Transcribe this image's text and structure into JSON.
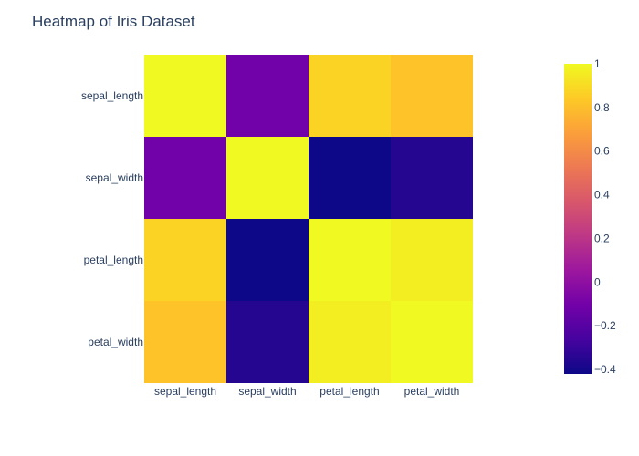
{
  "chart_data": {
    "type": "heatmap",
    "title": "Heatmap of Iris Dataset",
    "x_categories": [
      "sepal_length",
      "sepal_width",
      "petal_length",
      "petal_width"
    ],
    "y_categories": [
      "sepal_length",
      "sepal_width",
      "petal_length",
      "petal_width"
    ],
    "z": [
      [
        1.0,
        -0.109,
        0.872,
        0.818
      ],
      [
        -0.109,
        1.0,
        -0.421,
        -0.357
      ],
      [
        0.872,
        -0.421,
        1.0,
        0.963
      ],
      [
        0.818,
        -0.357,
        0.963,
        1.0
      ]
    ],
    "colorbar": {
      "min": -0.421,
      "max": 1.0,
      "ticks": [
        1,
        0.8,
        0.6,
        0.4,
        0.2,
        0,
        -0.2,
        -0.4
      ],
      "tick_labels": [
        "1",
        "0.8",
        "0.6",
        "0.4",
        "0.2",
        "0",
        "−0.2",
        "−0.4"
      ]
    },
    "colorscale": [
      "#0d0887",
      "#46039f",
      "#7201a8",
      "#9c179e",
      "#bd3786",
      "#d8576b",
      "#ed7953",
      "#fb9f3a",
      "#fdca26",
      "#f0f921"
    ]
  }
}
